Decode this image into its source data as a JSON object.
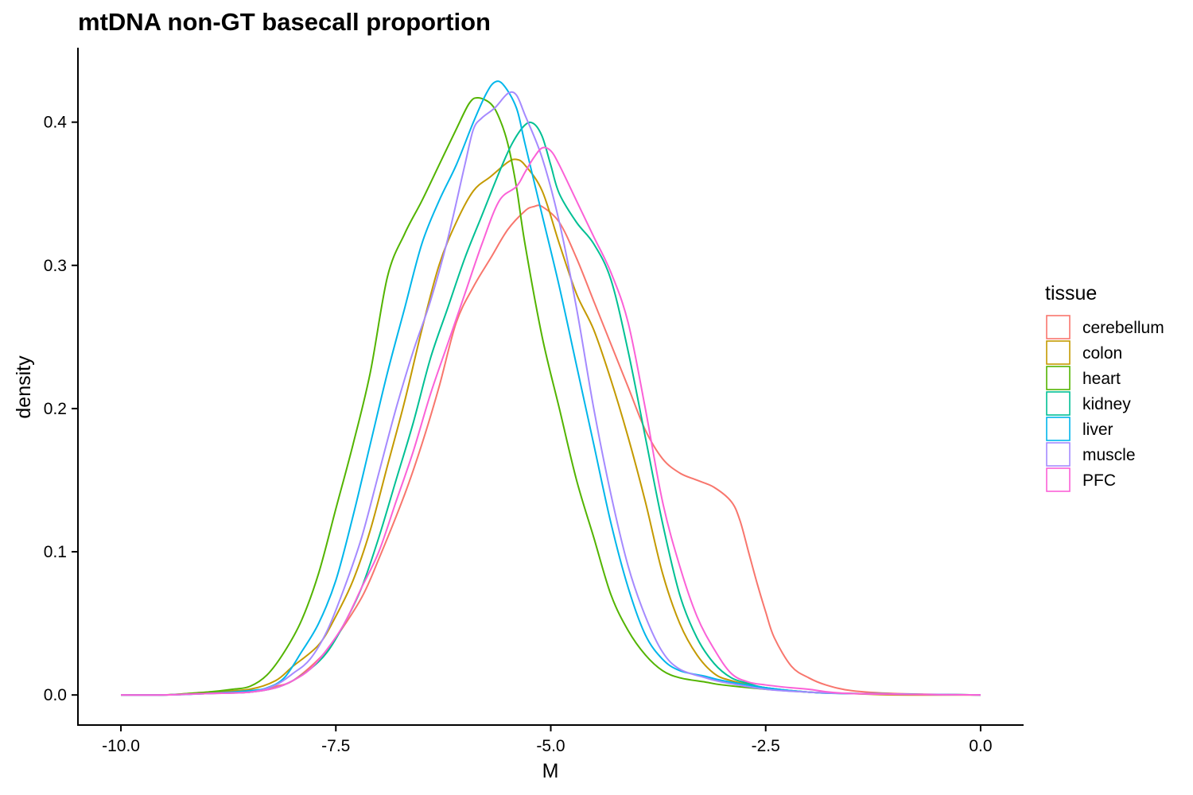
{
  "chart_data": {
    "type": "line",
    "title": "mtDNA non-GT basecall proportion",
    "xlabel": "M",
    "ylabel": "density",
    "xlim": [
      -10.5,
      0.5
    ],
    "ylim": [
      -0.021,
      0.452
    ],
    "x_ticks": [
      -10.0,
      -7.5,
      -5.0,
      -2.5,
      0.0
    ],
    "x_tick_labels": [
      "-10.0",
      "-7.5",
      "-5.0",
      "-2.5",
      "0.0"
    ],
    "y_ticks": [
      0.0,
      0.1,
      0.2,
      0.3,
      0.4
    ],
    "y_tick_labels": [
      "0.0",
      "0.1",
      "0.2",
      "0.3",
      "0.4"
    ],
    "grid": false,
    "legend": {
      "title": "tissue",
      "position": "right"
    },
    "series": [
      {
        "name": "cerebellum",
        "color": "#F8766D",
        "points": [
          [
            -10,
            0
          ],
          [
            -9.5,
            0
          ],
          [
            -9,
            0.001
          ],
          [
            -8.5,
            0.002
          ],
          [
            -8.2,
            0.006
          ],
          [
            -8,
            0.01
          ],
          [
            -7.7,
            0.025
          ],
          [
            -7.5,
            0.04
          ],
          [
            -7.2,
            0.068
          ],
          [
            -7,
            0.095
          ],
          [
            -6.7,
            0.14
          ],
          [
            -6.5,
            0.175
          ],
          [
            -6.3,
            0.215
          ],
          [
            -6.1,
            0.26
          ],
          [
            -5.9,
            0.285
          ],
          [
            -5.7,
            0.305
          ],
          [
            -5.5,
            0.325
          ],
          [
            -5.3,
            0.338
          ],
          [
            -5.2,
            0.341
          ],
          [
            -5.1,
            0.341
          ],
          [
            -4.9,
            0.33
          ],
          [
            -4.7,
            0.305
          ],
          [
            -4.5,
            0.275
          ],
          [
            -4.3,
            0.245
          ],
          [
            -4.1,
            0.215
          ],
          [
            -3.9,
            0.185
          ],
          [
            -3.7,
            0.165
          ],
          [
            -3.5,
            0.155
          ],
          [
            -3.3,
            0.15
          ],
          [
            -3.1,
            0.145
          ],
          [
            -2.9,
            0.135
          ],
          [
            -2.8,
            0.122
          ],
          [
            -2.7,
            0.1
          ],
          [
            -2.6,
            0.078
          ],
          [
            -2.5,
            0.058
          ],
          [
            -2.4,
            0.04
          ],
          [
            -2.2,
            0.02
          ],
          [
            -2,
            0.012
          ],
          [
            -1.8,
            0.007
          ],
          [
            -1.5,
            0.003
          ],
          [
            -1,
            0.001
          ],
          [
            0,
            0
          ]
        ]
      },
      {
        "name": "colon",
        "color": "#C49A00",
        "points": [
          [
            -10,
            0
          ],
          [
            -9.5,
            0
          ],
          [
            -9,
            0.002
          ],
          [
            -8.5,
            0.004
          ],
          [
            -8.2,
            0.01
          ],
          [
            -8,
            0.02
          ],
          [
            -7.7,
            0.035
          ],
          [
            -7.5,
            0.055
          ],
          [
            -7.3,
            0.08
          ],
          [
            -7.1,
            0.115
          ],
          [
            -6.9,
            0.16
          ],
          [
            -6.7,
            0.205
          ],
          [
            -6.5,
            0.255
          ],
          [
            -6.3,
            0.3
          ],
          [
            -6.1,
            0.33
          ],
          [
            -5.9,
            0.352
          ],
          [
            -5.7,
            0.362
          ],
          [
            -5.5,
            0.372
          ],
          [
            -5.4,
            0.374
          ],
          [
            -5.3,
            0.37
          ],
          [
            -5.1,
            0.352
          ],
          [
            -4.9,
            0.315
          ],
          [
            -4.7,
            0.28
          ],
          [
            -4.5,
            0.255
          ],
          [
            -4.3,
            0.22
          ],
          [
            -4.1,
            0.18
          ],
          [
            -3.9,
            0.135
          ],
          [
            -3.7,
            0.085
          ],
          [
            -3.5,
            0.05
          ],
          [
            -3.3,
            0.028
          ],
          [
            -3.1,
            0.015
          ],
          [
            -2.9,
            0.01
          ],
          [
            -2.5,
            0.005
          ],
          [
            -2,
            0.002
          ],
          [
            -1.5,
            0.001
          ],
          [
            -1,
            0
          ],
          [
            0,
            0
          ]
        ]
      },
      {
        "name": "heart",
        "color": "#53B400",
        "points": [
          [
            -10,
            0
          ],
          [
            -9.5,
            0
          ],
          [
            -9,
            0.002
          ],
          [
            -8.7,
            0.004
          ],
          [
            -8.5,
            0.006
          ],
          [
            -8.3,
            0.014
          ],
          [
            -8.1,
            0.03
          ],
          [
            -7.9,
            0.052
          ],
          [
            -7.7,
            0.085
          ],
          [
            -7.5,
            0.13
          ],
          [
            -7.3,
            0.175
          ],
          [
            -7.1,
            0.225
          ],
          [
            -6.9,
            0.292
          ],
          [
            -6.7,
            0.322
          ],
          [
            -6.5,
            0.345
          ],
          [
            -6.3,
            0.37
          ],
          [
            -6.1,
            0.395
          ],
          [
            -5.95,
            0.413
          ],
          [
            -5.85,
            0.417
          ],
          [
            -5.7,
            0.413
          ],
          [
            -5.6,
            0.403
          ],
          [
            -5.5,
            0.385
          ],
          [
            -5.4,
            0.355
          ],
          [
            -5.3,
            0.315
          ],
          [
            -5.1,
            0.25
          ],
          [
            -4.9,
            0.2
          ],
          [
            -4.7,
            0.15
          ],
          [
            -4.5,
            0.11
          ],
          [
            -4.3,
            0.07
          ],
          [
            -4.1,
            0.045
          ],
          [
            -3.9,
            0.028
          ],
          [
            -3.7,
            0.017
          ],
          [
            -3.5,
            0.012
          ],
          [
            -3.2,
            0.009
          ],
          [
            -3,
            0.007
          ],
          [
            -2.5,
            0.004
          ],
          [
            -2,
            0.002
          ],
          [
            -1.5,
            0.001
          ],
          [
            0,
            0
          ]
        ]
      },
      {
        "name": "kidney",
        "color": "#00C094",
        "points": [
          [
            -10,
            0
          ],
          [
            -9.5,
            0
          ],
          [
            -9,
            0.001
          ],
          [
            -8.5,
            0.002
          ],
          [
            -8.2,
            0.005
          ],
          [
            -8,
            0.01
          ],
          [
            -7.8,
            0.018
          ],
          [
            -7.6,
            0.03
          ],
          [
            -7.4,
            0.05
          ],
          [
            -7.2,
            0.075
          ],
          [
            -7,
            0.11
          ],
          [
            -6.8,
            0.15
          ],
          [
            -6.6,
            0.19
          ],
          [
            -6.4,
            0.235
          ],
          [
            -6.2,
            0.27
          ],
          [
            -6,
            0.305
          ],
          [
            -5.8,
            0.335
          ],
          [
            -5.6,
            0.365
          ],
          [
            -5.45,
            0.385
          ],
          [
            -5.3,
            0.398
          ],
          [
            -5.2,
            0.399
          ],
          [
            -5.1,
            0.39
          ],
          [
            -5,
            0.37
          ],
          [
            -4.9,
            0.35
          ],
          [
            -4.7,
            0.33
          ],
          [
            -4.5,
            0.315
          ],
          [
            -4.3,
            0.29
          ],
          [
            -4.1,
            0.24
          ],
          [
            -3.9,
            0.18
          ],
          [
            -3.7,
            0.12
          ],
          [
            -3.5,
            0.07
          ],
          [
            -3.3,
            0.04
          ],
          [
            -3.1,
            0.022
          ],
          [
            -2.9,
            0.012
          ],
          [
            -2.7,
            0.008
          ],
          [
            -2.5,
            0.005
          ],
          [
            -2,
            0.002
          ],
          [
            -1.5,
            0.001
          ],
          [
            0,
            0
          ]
        ]
      },
      {
        "name": "liver",
        "color": "#00B6EB",
        "points": [
          [
            -10,
            0
          ],
          [
            -9.5,
            0
          ],
          [
            -9,
            0.001
          ],
          [
            -8.5,
            0.003
          ],
          [
            -8.3,
            0.005
          ],
          [
            -8.1,
            0.012
          ],
          [
            -7.9,
            0.03
          ],
          [
            -7.7,
            0.05
          ],
          [
            -7.5,
            0.08
          ],
          [
            -7.3,
            0.125
          ],
          [
            -7.1,
            0.175
          ],
          [
            -6.9,
            0.225
          ],
          [
            -6.7,
            0.27
          ],
          [
            -6.5,
            0.315
          ],
          [
            -6.3,
            0.345
          ],
          [
            -6.1,
            0.37
          ],
          [
            -5.9,
            0.4
          ],
          [
            -5.75,
            0.42
          ],
          [
            -5.65,
            0.428
          ],
          [
            -5.55,
            0.426
          ],
          [
            -5.4,
            0.41
          ],
          [
            -5.3,
            0.385
          ],
          [
            -5.1,
            0.335
          ],
          [
            -4.9,
            0.285
          ],
          [
            -4.7,
            0.23
          ],
          [
            -4.5,
            0.175
          ],
          [
            -4.3,
            0.12
          ],
          [
            -4.1,
            0.075
          ],
          [
            -3.9,
            0.042
          ],
          [
            -3.7,
            0.025
          ],
          [
            -3.5,
            0.017
          ],
          [
            -3.2,
            0.013
          ],
          [
            -3,
            0.01
          ],
          [
            -2.5,
            0.005
          ],
          [
            -2,
            0.002
          ],
          [
            -1.5,
            0.001
          ],
          [
            0,
            0
          ]
        ]
      },
      {
        "name": "muscle",
        "color": "#A58AFF",
        "points": [
          [
            -10,
            0
          ],
          [
            -9.5,
            0
          ],
          [
            -9,
            0.001
          ],
          [
            -8.5,
            0.002
          ],
          [
            -8.2,
            0.007
          ],
          [
            -8,
            0.015
          ],
          [
            -7.8,
            0.025
          ],
          [
            -7.6,
            0.045
          ],
          [
            -7.4,
            0.075
          ],
          [
            -7.2,
            0.11
          ],
          [
            -7,
            0.155
          ],
          [
            -6.8,
            0.2
          ],
          [
            -6.6,
            0.24
          ],
          [
            -6.4,
            0.275
          ],
          [
            -6.2,
            0.318
          ],
          [
            -6,
            0.37
          ],
          [
            -5.9,
            0.395
          ],
          [
            -5.8,
            0.403
          ],
          [
            -5.65,
            0.41
          ],
          [
            -5.5,
            0.42
          ],
          [
            -5.4,
            0.419
          ],
          [
            -5.3,
            0.405
          ],
          [
            -5.1,
            0.375
          ],
          [
            -4.9,
            0.33
          ],
          [
            -4.7,
            0.27
          ],
          [
            -4.5,
            0.2
          ],
          [
            -4.3,
            0.14
          ],
          [
            -4.1,
            0.09
          ],
          [
            -3.9,
            0.055
          ],
          [
            -3.7,
            0.03
          ],
          [
            -3.5,
            0.018
          ],
          [
            -3.2,
            0.012
          ],
          [
            -3,
            0.009
          ],
          [
            -2.5,
            0.004
          ],
          [
            -2,
            0.002
          ],
          [
            -1.5,
            0.001
          ],
          [
            0,
            0
          ]
        ]
      },
      {
        "name": "PFC",
        "color": "#FB61D7",
        "points": [
          [
            -10,
            0
          ],
          [
            -9.5,
            0
          ],
          [
            -9,
            0.001
          ],
          [
            -8.5,
            0.002
          ],
          [
            -8.2,
            0.005
          ],
          [
            -8,
            0.01
          ],
          [
            -7.8,
            0.018
          ],
          [
            -7.6,
            0.032
          ],
          [
            -7.4,
            0.05
          ],
          [
            -7.2,
            0.075
          ],
          [
            -7,
            0.1
          ],
          [
            -6.8,
            0.135
          ],
          [
            -6.6,
            0.17
          ],
          [
            -6.4,
            0.21
          ],
          [
            -6.2,
            0.245
          ],
          [
            -6,
            0.28
          ],
          [
            -5.8,
            0.315
          ],
          [
            -5.6,
            0.345
          ],
          [
            -5.4,
            0.355
          ],
          [
            -5.3,
            0.365
          ],
          [
            -5.2,
            0.375
          ],
          [
            -5.1,
            0.382
          ],
          [
            -5,
            0.38
          ],
          [
            -4.9,
            0.37
          ],
          [
            -4.7,
            0.345
          ],
          [
            -4.5,
            0.32
          ],
          [
            -4.3,
            0.295
          ],
          [
            -4.1,
            0.26
          ],
          [
            -3.9,
            0.2
          ],
          [
            -3.7,
            0.135
          ],
          [
            -3.5,
            0.09
          ],
          [
            -3.3,
            0.055
          ],
          [
            -3.1,
            0.032
          ],
          [
            -2.9,
            0.015
          ],
          [
            -2.7,
            0.009
          ],
          [
            -2.5,
            0.007
          ],
          [
            -2.2,
            0.005
          ],
          [
            -2,
            0.004
          ],
          [
            -1.5,
            0.001
          ],
          [
            0,
            0
          ]
        ]
      }
    ]
  }
}
